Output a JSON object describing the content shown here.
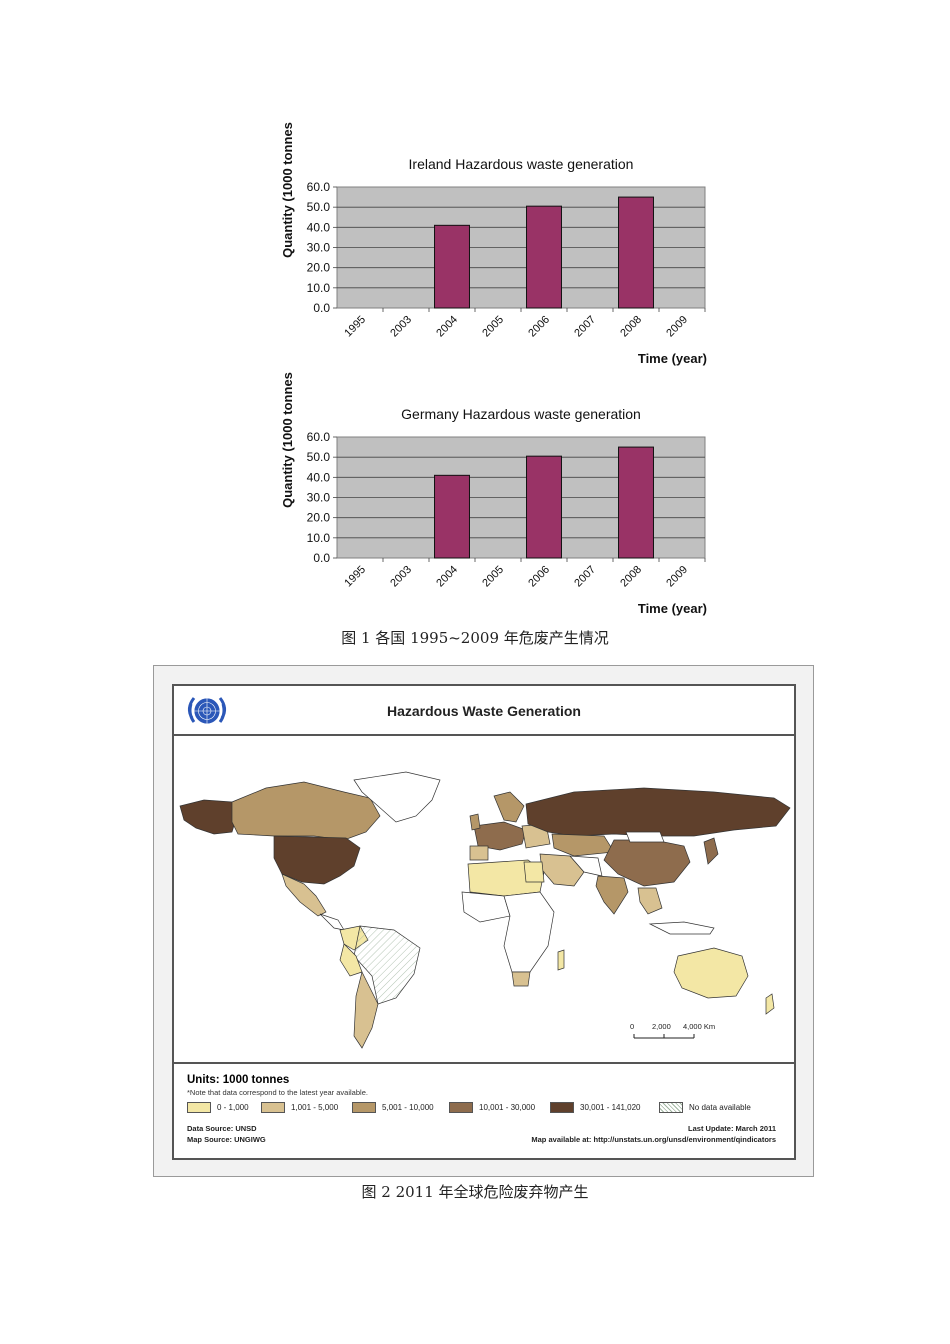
{
  "chart_data": [
    {
      "type": "bar",
      "title": "Ireland Hazardous waste generation",
      "ylabel": "Quantity (1000 tonnes",
      "xlabel": "Time (year)",
      "categories": [
        "1995",
        "2003",
        "2004",
        "2005",
        "2006",
        "2007",
        "2008",
        "2009"
      ],
      "values": [
        0,
        0,
        41,
        0,
        50.5,
        0,
        55,
        0
      ],
      "yticks": [
        "0.0",
        "10.0",
        "20.0",
        "30.0",
        "40.0",
        "50.0",
        "60.0"
      ],
      "ylim": [
        0,
        60
      ],
      "grid": true,
      "bar_color": "#993366",
      "plot_bg": "#c0c0c0"
    },
    {
      "type": "bar",
      "title": "Germany Hazardous waste generation",
      "ylabel": "Quantity (1000 tonnes",
      "xlabel": "Time (year)",
      "categories": [
        "1995",
        "2003",
        "2004",
        "2005",
        "2006",
        "2007",
        "2008",
        "2009"
      ],
      "values": [
        0,
        0,
        41,
        0,
        50.5,
        0,
        55,
        0
      ],
      "yticks": [
        "0.0",
        "10.0",
        "20.0",
        "30.0",
        "40.0",
        "50.0",
        "60.0"
      ],
      "ylim": [
        0,
        60
      ],
      "grid": true,
      "bar_color": "#993366",
      "plot_bg": "#c0c0c0"
    }
  ],
  "captions": {
    "fig1": "图 1  各国 1995~2009 年危废产生情况",
    "fig2": "图 2  2011 年全球危险废弃物产生"
  },
  "map": {
    "title": "Hazardous Waste Generation",
    "units_title": "Units: 1000 tonnes",
    "units_note": "*Note that data correspond to the latest year available.",
    "legend": [
      {
        "label": "0 - 1,000",
        "color": "#f3e7a5"
      },
      {
        "label": "1,001 - 5,000",
        "color": "#d8c191"
      },
      {
        "label": "5,001 - 10,000",
        "color": "#b59768"
      },
      {
        "label": "10,001 - 30,000",
        "color": "#8e6c4d"
      },
      {
        "label": "30,001 - 141,020",
        "color": "#5f402c"
      },
      {
        "label": "No data available",
        "color": "#ffffff"
      }
    ],
    "data_source": "Data Source: UNSD",
    "map_source": "Map Source: UNGIWG",
    "last_update": "Last Update: March 2011",
    "available_at": "Map available at: http://unstats.un.org/unsd/environment/qindicators",
    "scale": [
      "0",
      "2,000",
      "4,000 Km"
    ]
  }
}
